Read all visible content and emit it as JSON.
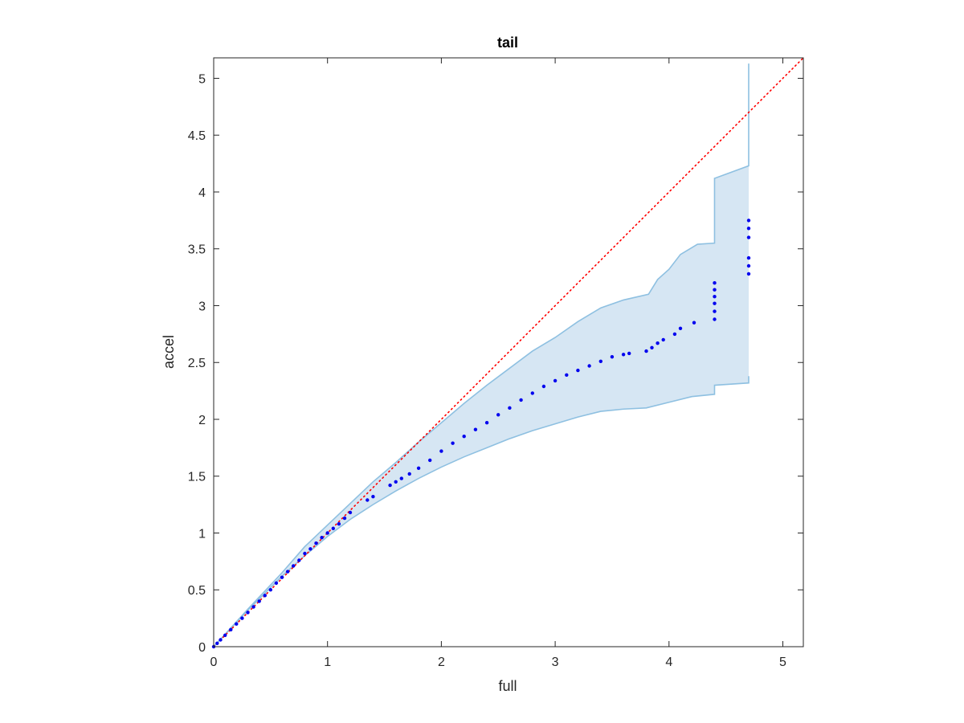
{
  "chart_data": {
    "type": "scatter",
    "title": "tail",
    "xlabel": "full",
    "ylabel": "accel",
    "xlim": [
      0,
      5.18
    ],
    "ylim": [
      0,
      5.18
    ],
    "xticks": [
      "0",
      "1",
      "2",
      "3",
      "4",
      "5"
    ],
    "yticks": [
      "0",
      "0.5",
      "1",
      "1.5",
      "2",
      "2.5",
      "3",
      "3.5",
      "4",
      "4.5",
      "5"
    ],
    "grid": false,
    "legend": "none",
    "colors": {
      "points": "#0000ee",
      "reference": "#ff0000",
      "band_fill": "#d6e6f3",
      "band_edge": "#8ec0e1"
    },
    "reference_line": {
      "style": "dotted",
      "x": [
        0,
        5.18
      ],
      "y": [
        0,
        5.18
      ]
    },
    "band_upper": [
      [
        0,
        0
      ],
      [
        0.3,
        0.33
      ],
      [
        0.6,
        0.65
      ],
      [
        0.8,
        0.88
      ],
      [
        1.0,
        1.07
      ],
      [
        1.2,
        1.26
      ],
      [
        1.4,
        1.45
      ],
      [
        1.6,
        1.62
      ],
      [
        1.8,
        1.8
      ],
      [
        2.0,
        1.97
      ],
      [
        2.2,
        2.14
      ],
      [
        2.4,
        2.3
      ],
      [
        2.6,
        2.45
      ],
      [
        2.8,
        2.6
      ],
      [
        3.0,
        2.72
      ],
      [
        3.2,
        2.86
      ],
      [
        3.4,
        2.98
      ],
      [
        3.6,
        3.05
      ],
      [
        3.82,
        3.1
      ],
      [
        3.9,
        3.23
      ],
      [
        4.0,
        3.32
      ],
      [
        4.1,
        3.45
      ],
      [
        4.25,
        3.54
      ],
      [
        4.4,
        3.55
      ],
      [
        4.4,
        4.12
      ],
      [
        4.7,
        4.23
      ],
      [
        4.7,
        5.13
      ]
    ],
    "band_lower": [
      [
        0,
        0
      ],
      [
        0.3,
        0.32
      ],
      [
        0.6,
        0.62
      ],
      [
        0.8,
        0.8
      ],
      [
        1.0,
        0.97
      ],
      [
        1.2,
        1.12
      ],
      [
        1.4,
        1.25
      ],
      [
        1.6,
        1.37
      ],
      [
        1.8,
        1.48
      ],
      [
        2.0,
        1.58
      ],
      [
        2.2,
        1.67
      ],
      [
        2.4,
        1.75
      ],
      [
        2.6,
        1.83
      ],
      [
        2.8,
        1.9
      ],
      [
        3.0,
        1.96
      ],
      [
        3.2,
        2.02
      ],
      [
        3.4,
        2.07
      ],
      [
        3.6,
        2.09
      ],
      [
        3.8,
        2.1
      ],
      [
        4.0,
        2.15
      ],
      [
        4.2,
        2.2
      ],
      [
        4.4,
        2.22
      ],
      [
        4.4,
        2.3
      ],
      [
        4.7,
        2.32
      ],
      [
        4.7,
        2.38
      ]
    ],
    "points": [
      [
        0.0,
        0.0
      ],
      [
        0.03,
        0.03
      ],
      [
        0.06,
        0.06
      ],
      [
        0.1,
        0.1
      ],
      [
        0.15,
        0.15
      ],
      [
        0.2,
        0.2
      ],
      [
        0.25,
        0.25
      ],
      [
        0.3,
        0.3
      ],
      [
        0.35,
        0.35
      ],
      [
        0.4,
        0.4
      ],
      [
        0.45,
        0.45
      ],
      [
        0.5,
        0.5
      ],
      [
        0.55,
        0.56
      ],
      [
        0.6,
        0.61
      ],
      [
        0.65,
        0.66
      ],
      [
        0.7,
        0.71
      ],
      [
        0.75,
        0.76
      ],
      [
        0.8,
        0.82
      ],
      [
        0.85,
        0.86
      ],
      [
        0.9,
        0.91
      ],
      [
        0.95,
        0.96
      ],
      [
        1.0,
        1.0
      ],
      [
        1.05,
        1.04
      ],
      [
        1.1,
        1.08
      ],
      [
        1.15,
        1.13
      ],
      [
        1.2,
        1.18
      ],
      [
        1.35,
        1.29
      ],
      [
        1.4,
        1.32
      ],
      [
        1.55,
        1.42
      ],
      [
        1.6,
        1.45
      ],
      [
        1.65,
        1.48
      ],
      [
        1.72,
        1.52
      ],
      [
        1.8,
        1.57
      ],
      [
        1.9,
        1.64
      ],
      [
        2.0,
        1.72
      ],
      [
        2.1,
        1.79
      ],
      [
        2.2,
        1.85
      ],
      [
        2.3,
        1.91
      ],
      [
        2.4,
        1.97
      ],
      [
        2.5,
        2.04
      ],
      [
        2.6,
        2.1
      ],
      [
        2.7,
        2.17
      ],
      [
        2.8,
        2.23
      ],
      [
        2.9,
        2.29
      ],
      [
        3.0,
        2.34
      ],
      [
        3.1,
        2.39
      ],
      [
        3.2,
        2.43
      ],
      [
        3.3,
        2.47
      ],
      [
        3.4,
        2.51
      ],
      [
        3.5,
        2.55
      ],
      [
        3.6,
        2.57
      ],
      [
        3.65,
        2.58
      ],
      [
        3.8,
        2.6
      ],
      [
        3.85,
        2.63
      ],
      [
        3.9,
        2.67
      ],
      [
        3.95,
        2.7
      ],
      [
        4.05,
        2.75
      ],
      [
        4.1,
        2.8
      ],
      [
        4.22,
        2.85
      ],
      [
        4.4,
        2.88
      ],
      [
        4.4,
        2.95
      ],
      [
        4.4,
        3.02
      ],
      [
        4.4,
        3.08
      ],
      [
        4.4,
        3.14
      ],
      [
        4.4,
        3.2
      ],
      [
        4.7,
        3.28
      ],
      [
        4.7,
        3.35
      ],
      [
        4.7,
        3.42
      ],
      [
        4.7,
        3.6
      ],
      [
        4.7,
        3.68
      ],
      [
        4.7,
        3.75
      ]
    ]
  }
}
